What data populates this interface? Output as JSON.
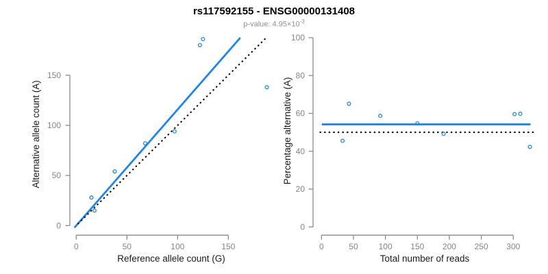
{
  "header": {
    "title": "rs117592155 - ENSG00000131408",
    "pvalue_base": "p-value: 4.95×10",
    "pvalue_exponent": "-3"
  },
  "colors": {
    "accent_blue": "#1C86EE",
    "reference_black": "#000000",
    "axis_gray": "#8B8B8B",
    "tick_label_gray": "#848484",
    "axis_title_black": "#1A1A1A",
    "subtitle_gray": "#8F8F8F"
  },
  "chart_data": [
    {
      "type": "scatter",
      "panel": "left",
      "xlabel": "Reference allele count (G)",
      "ylabel": "Alternative allele count (A)",
      "xticks": [
        0,
        50,
        100,
        150
      ],
      "yticks": [
        0,
        50,
        100,
        150
      ],
      "xlim": [
        -8,
        196
      ],
      "ylim": [
        -8,
        194
      ],
      "grid": false,
      "legend": "none",
      "points": [
        [
          15,
          28
        ],
        [
          18,
          15
        ],
        [
          38,
          54
        ],
        [
          68,
          82
        ],
        [
          97,
          94
        ],
        [
          122,
          180
        ],
        [
          125,
          186
        ],
        [
          188,
          138
        ]
      ],
      "lines": [
        {
          "name": "fitted-proportion-line",
          "style": "solid",
          "color": "accent_blue",
          "x1": -1.8,
          "y1": -2.1,
          "x2": 161.8,
          "y2": 187.4,
          "slope": 1.16,
          "intercept": 0
        },
        {
          "name": "identity-line",
          "style": "dotted",
          "color": "reference_black",
          "x1": 1.5,
          "y1": 1.5,
          "x2": 188.5,
          "y2": 188.5,
          "slope": 1,
          "intercept": 0
        }
      ]
    },
    {
      "type": "scatter",
      "panel": "right",
      "xlabel": "Total number of reads",
      "ylabel": "Percentage alternative (A)",
      "xticks": [
        0,
        50,
        100,
        150,
        200,
        250,
        300
      ],
      "yticks": [
        0,
        20,
        40,
        60,
        80,
        100
      ],
      "xlim": [
        -14,
        340
      ],
      "ylim": [
        0,
        100
      ],
      "grid": false,
      "legend": "none",
      "points": [
        [
          33,
          45.5
        ],
        [
          43,
          65.1
        ],
        [
          92,
          58.7
        ],
        [
          150,
          54.7
        ],
        [
          191,
          49.2
        ],
        [
          302,
          59.6
        ],
        [
          311,
          59.8
        ],
        [
          326,
          42.3
        ]
      ],
      "lines": [
        {
          "name": "mean-percentage-line",
          "style": "solid",
          "color": "accent_blue",
          "x1": 0.5,
          "y1": 54.2,
          "x2": 327,
          "y2": 54.2
        },
        {
          "name": "fifty-percent-line",
          "style": "dotted",
          "color": "reference_black",
          "x1": -3,
          "y1": 50,
          "x2": 333,
          "y2": 50
        }
      ]
    }
  ]
}
